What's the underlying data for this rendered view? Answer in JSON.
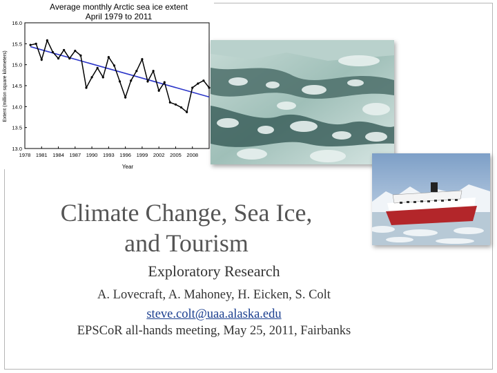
{
  "slide": {
    "title_line1": "Climate Change, Sea Ice,",
    "title_line2": "and Tourism",
    "subtitle": "Exploratory Research",
    "authors": "A. Lovecraft, A. Mahoney, H. Eicken, S. Colt",
    "email": "steve.colt@uaa.alaska.edu",
    "event": "EPSCoR all-hands meeting, May 25, 2011, Fairbanks"
  },
  "colors": {
    "title": "#555555",
    "link": "#1a3e8f",
    "data_line": "#000000",
    "trend_line": "#2b35c8",
    "ship_hull": "#b3262a"
  },
  "images": {
    "ice_photo": "aerial-sea-ice-photo",
    "ship_photo": "cruise-ship-in-ice-photo"
  },
  "chart_data": {
    "type": "line",
    "title": "Average monthly Arctic sea ice extent",
    "subtitle": "April 1979 to 2011",
    "xlabel": "Year",
    "ylabel": "Extent (million square kilometers)",
    "xlim": [
      1978,
      2011
    ],
    "ylim": [
      13.0,
      16.0
    ],
    "x_ticks": [
      1978,
      1981,
      1984,
      1987,
      1990,
      1993,
      1996,
      1999,
      2002,
      2005,
      2008
    ],
    "y_ticks": [
      "13.0",
      "13.5",
      "14.0",
      "14.5",
      "15.0",
      "15.5",
      "16.0"
    ],
    "series": [
      {
        "x": [
          1979,
          1980,
          1981,
          1982,
          1983,
          1984,
          1985,
          1986,
          1987,
          1988,
          1989,
          1990,
          1991,
          1992,
          1993,
          1994,
          1995,
          1996,
          1997,
          1998,
          1999,
          2000,
          2001,
          2002,
          2003,
          2004,
          2005,
          2006,
          2007,
          2008,
          2009,
          2010,
          2011
        ],
        "values": [
          15.47,
          15.5,
          15.12,
          15.58,
          15.3,
          15.15,
          15.35,
          15.15,
          15.33,
          15.22,
          14.45,
          14.7,
          14.92,
          14.7,
          15.18,
          14.98,
          14.6,
          14.22,
          14.62,
          14.85,
          15.13,
          14.6,
          14.85,
          14.38,
          14.58,
          14.1,
          14.05,
          13.98,
          13.87,
          14.45,
          14.55,
          14.62,
          14.45
        ]
      }
    ],
    "trend": {
      "x": [
        1979,
        2011
      ],
      "values": [
        15.43,
        14.23
      ]
    },
    "grid": false,
    "legend": "none"
  }
}
